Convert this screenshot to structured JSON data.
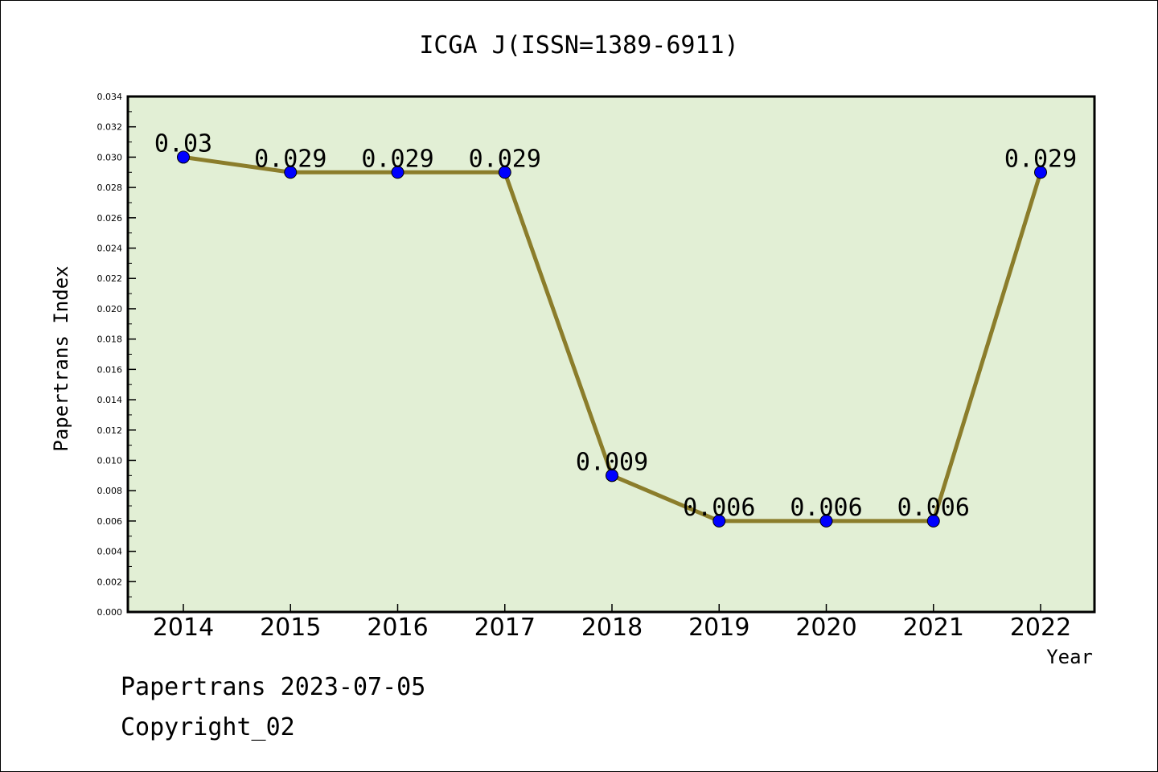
{
  "chart_data": {
    "type": "line",
    "title": "ICGA J(ISSN=1389-6911)",
    "xlabel": "Year",
    "ylabel": "Papertrans Index",
    "categories": [
      "2014",
      "2015",
      "2016",
      "2017",
      "2018",
      "2019",
      "2020",
      "2021",
      "2022"
    ],
    "values": [
      0.03,
      0.029,
      0.029,
      0.029,
      0.009,
      0.006,
      0.006,
      0.006,
      0.029
    ],
    "data_labels": [
      "0.03",
      "0.029",
      "0.029",
      "0.029",
      "0.009",
      "0.006",
      "0.006",
      "0.006",
      "0.029"
    ],
    "ylim": [
      0,
      0.034
    ],
    "ytick_labels": [
      "0.000",
      "0.002",
      "0.004",
      "0.006",
      "0.008",
      "0.010",
      "0.012",
      "0.014",
      "0.016",
      "0.018",
      "0.020",
      "0.022",
      "0.024",
      "0.026",
      "0.028",
      "0.030",
      "0.032",
      "0.034"
    ],
    "grid": false,
    "colors": {
      "plot_background": "#e2efd5",
      "line": "#8b7d2b",
      "marker": "#0000ff"
    }
  },
  "footer": {
    "source": "Papertrans 2023-07-05",
    "copyright": "Copyright_02"
  }
}
